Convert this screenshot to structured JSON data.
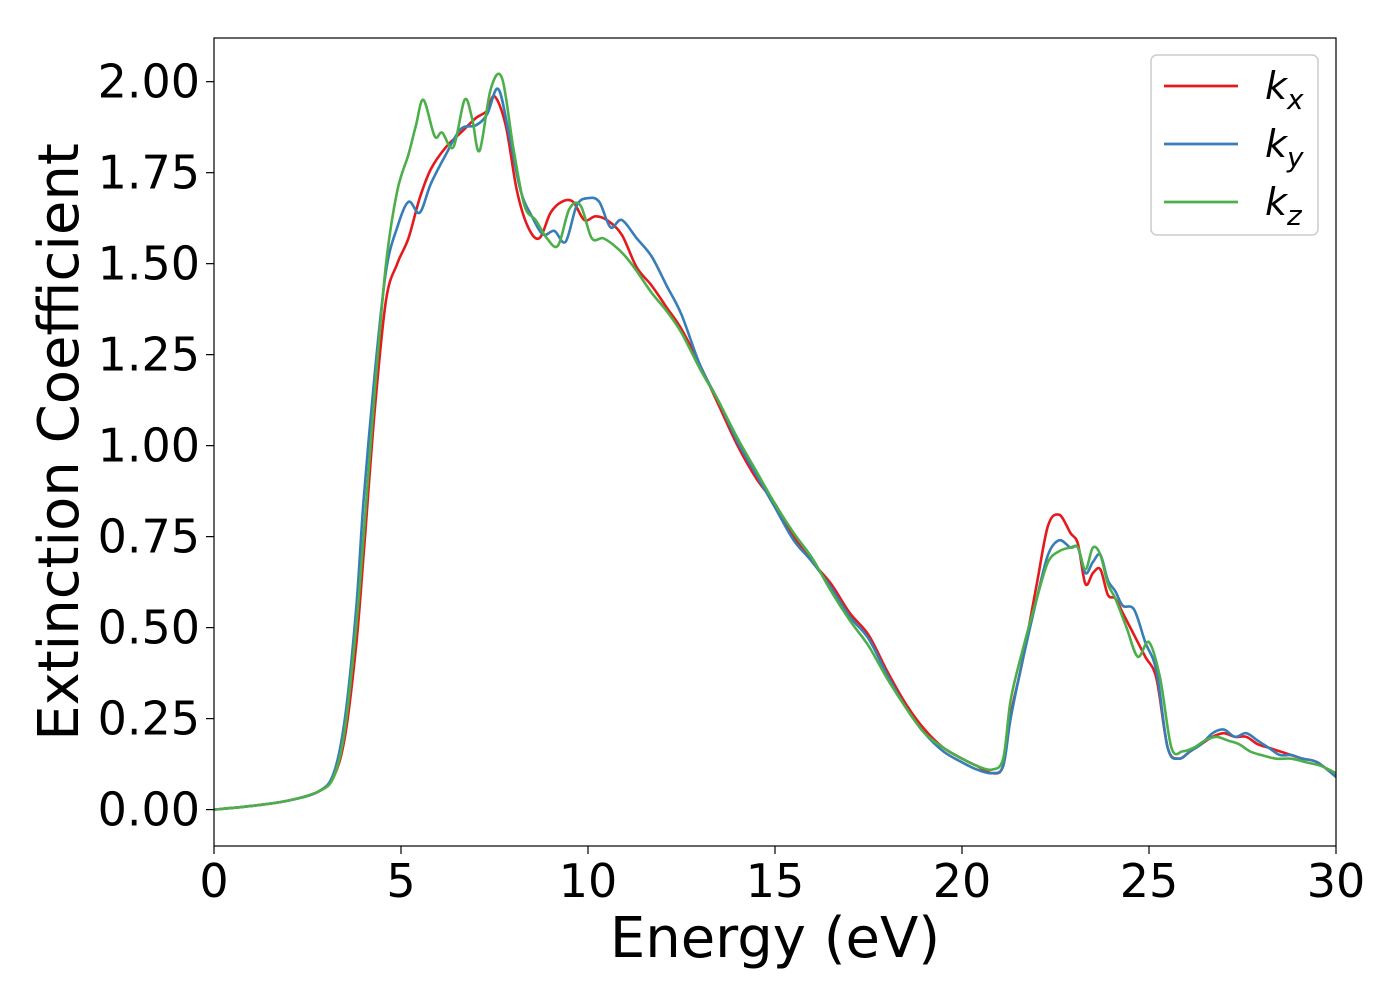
{
  "chart_data": {
    "type": "line",
    "xlabel": "Energy (eV)",
    "ylabel": "Extinction Coefficient",
    "xlim": [
      0,
      30
    ],
    "ylim": [
      -0.1,
      2.12
    ],
    "xticks": [
      "0",
      "5",
      "10",
      "15",
      "20",
      "25",
      "30"
    ],
    "xtick_values": [
      0,
      5,
      10,
      15,
      20,
      25,
      30
    ],
    "yticks": [
      "0.00",
      "0.25",
      "0.50",
      "0.75",
      "1.00",
      "1.25",
      "1.50",
      "1.75",
      "2.00"
    ],
    "ytick_values": [
      0,
      0.25,
      0.5,
      0.75,
      1.0,
      1.25,
      1.5,
      1.75,
      2.0
    ],
    "grid": false,
    "legend_position": "top-right",
    "series": [
      {
        "name": "k",
        "subscript": "x",
        "color": "#e41a1c",
        "x": [
          0,
          1,
          2,
          2.8,
          3.2,
          3.5,
          3.8,
          4.0,
          4.3,
          4.6,
          4.9,
          5.2,
          5.5,
          5.8,
          6.2,
          6.6,
          7.0,
          7.3,
          7.5,
          7.8,
          8.1,
          8.4,
          8.7,
          9.0,
          9.3,
          9.6,
          9.9,
          10.2,
          10.5,
          10.9,
          11.3,
          11.7,
          12.1,
          12.5,
          13.0,
          13.5,
          14.0,
          14.5,
          15.0,
          15.5,
          16.0,
          16.5,
          17.0,
          17.5,
          18.0,
          18.5,
          19.0,
          19.5,
          20.0,
          20.4,
          20.8,
          21.1,
          21.3,
          21.6,
          22.0,
          22.3,
          22.6,
          22.9,
          23.1,
          23.3,
          23.5,
          23.7,
          23.9,
          24.1,
          24.3,
          24.6,
          24.9,
          25.2,
          25.5,
          25.8,
          26.1,
          26.4,
          26.7,
          27.0,
          27.3,
          27.6,
          27.9,
          28.2,
          28.5,
          28.8,
          29.1,
          29.5,
          30.0
        ],
        "values": [
          0.0,
          0.01,
          0.025,
          0.05,
          0.09,
          0.2,
          0.45,
          0.7,
          1.1,
          1.4,
          1.5,
          1.57,
          1.68,
          1.76,
          1.82,
          1.86,
          1.9,
          1.92,
          1.96,
          1.88,
          1.7,
          1.6,
          1.57,
          1.64,
          1.67,
          1.67,
          1.62,
          1.63,
          1.62,
          1.58,
          1.49,
          1.44,
          1.38,
          1.32,
          1.22,
          1.11,
          1.0,
          0.91,
          0.84,
          0.75,
          0.68,
          0.62,
          0.54,
          0.48,
          0.38,
          0.29,
          0.22,
          0.17,
          0.14,
          0.12,
          0.1,
          0.12,
          0.26,
          0.4,
          0.62,
          0.78,
          0.81,
          0.76,
          0.73,
          0.62,
          0.65,
          0.66,
          0.59,
          0.58,
          0.54,
          0.48,
          0.42,
          0.36,
          0.17,
          0.14,
          0.16,
          0.18,
          0.2,
          0.21,
          0.2,
          0.2,
          0.18,
          0.17,
          0.16,
          0.15,
          0.14,
          0.13,
          0.09
        ]
      },
      {
        "name": "k",
        "subscript": "y",
        "color": "#377eb8",
        "x": [
          0,
          1,
          2,
          2.8,
          3.2,
          3.5,
          3.8,
          4.0,
          4.3,
          4.6,
          4.9,
          5.2,
          5.5,
          5.8,
          6.2,
          6.6,
          7.0,
          7.3,
          7.6,
          7.9,
          8.2,
          8.5,
          8.8,
          9.1,
          9.4,
          9.7,
          10.0,
          10.3,
          10.6,
          10.9,
          11.3,
          11.7,
          12.1,
          12.5,
          13.0,
          13.5,
          14.0,
          14.5,
          15.0,
          15.5,
          16.0,
          16.5,
          17.0,
          17.5,
          18.0,
          18.5,
          19.0,
          19.5,
          20.0,
          20.4,
          20.8,
          21.1,
          21.3,
          21.6,
          22.0,
          22.3,
          22.6,
          22.9,
          23.1,
          23.3,
          23.5,
          23.7,
          23.9,
          24.1,
          24.3,
          24.6,
          24.9,
          25.2,
          25.5,
          25.8,
          26.1,
          26.4,
          26.7,
          27.0,
          27.3,
          27.6,
          27.9,
          28.2,
          28.5,
          28.8,
          29.1,
          29.5,
          30.0
        ],
        "values": [
          0.0,
          0.01,
          0.025,
          0.05,
          0.1,
          0.25,
          0.55,
          0.85,
          1.2,
          1.48,
          1.6,
          1.67,
          1.64,
          1.72,
          1.8,
          1.87,
          1.88,
          1.91,
          1.98,
          1.85,
          1.7,
          1.63,
          1.58,
          1.59,
          1.56,
          1.66,
          1.68,
          1.67,
          1.6,
          1.62,
          1.57,
          1.52,
          1.44,
          1.36,
          1.22,
          1.12,
          1.01,
          0.92,
          0.83,
          0.74,
          0.68,
          0.61,
          0.53,
          0.47,
          0.37,
          0.28,
          0.21,
          0.16,
          0.13,
          0.11,
          0.1,
          0.12,
          0.25,
          0.4,
          0.58,
          0.7,
          0.74,
          0.72,
          0.72,
          0.65,
          0.68,
          0.7,
          0.63,
          0.6,
          0.56,
          0.55,
          0.46,
          0.38,
          0.17,
          0.14,
          0.16,
          0.18,
          0.21,
          0.22,
          0.2,
          0.21,
          0.19,
          0.17,
          0.15,
          0.15,
          0.14,
          0.13,
          0.09
        ]
      },
      {
        "name": "k",
        "subscript": "z",
        "color": "#4daf4a",
        "x": [
          0,
          1,
          2,
          2.8,
          3.2,
          3.5,
          3.8,
          4.0,
          4.3,
          4.6,
          4.9,
          5.2,
          5.4,
          5.6,
          5.9,
          6.1,
          6.4,
          6.7,
          6.9,
          7.1,
          7.4,
          7.7,
          8.0,
          8.3,
          8.6,
          8.9,
          9.2,
          9.5,
          9.8,
          10.1,
          10.4,
          10.7,
          11.0,
          11.3,
          11.7,
          12.1,
          12.5,
          13.0,
          13.5,
          14.0,
          14.5,
          15.0,
          15.5,
          16.0,
          16.5,
          17.0,
          17.5,
          18.0,
          18.5,
          19.0,
          19.5,
          20.0,
          20.4,
          20.8,
          21.1,
          21.3,
          21.6,
          22.0,
          22.3,
          22.6,
          22.9,
          23.1,
          23.3,
          23.5,
          23.7,
          23.9,
          24.1,
          24.4,
          24.7,
          25.0,
          25.3,
          25.6,
          25.9,
          26.2,
          26.5,
          26.8,
          27.1,
          27.4,
          27.7,
          28.0,
          28.4,
          28.8,
          29.2,
          29.6,
          30.0
        ],
        "values": [
          0.0,
          0.01,
          0.025,
          0.05,
          0.09,
          0.22,
          0.5,
          0.75,
          1.15,
          1.5,
          1.7,
          1.8,
          1.88,
          1.95,
          1.85,
          1.86,
          1.82,
          1.95,
          1.9,
          1.81,
          1.98,
          2.01,
          1.82,
          1.66,
          1.62,
          1.57,
          1.55,
          1.65,
          1.66,
          1.57,
          1.57,
          1.55,
          1.52,
          1.48,
          1.42,
          1.37,
          1.31,
          1.21,
          1.12,
          1.02,
          0.93,
          0.84,
          0.76,
          0.69,
          0.6,
          0.52,
          0.45,
          0.36,
          0.28,
          0.21,
          0.17,
          0.14,
          0.12,
          0.11,
          0.14,
          0.3,
          0.43,
          0.58,
          0.68,
          0.71,
          0.72,
          0.72,
          0.66,
          0.72,
          0.7,
          0.62,
          0.58,
          0.5,
          0.42,
          0.46,
          0.36,
          0.17,
          0.16,
          0.17,
          0.19,
          0.2,
          0.19,
          0.18,
          0.16,
          0.15,
          0.14,
          0.14,
          0.13,
          0.12,
          0.1
        ]
      }
    ]
  }
}
